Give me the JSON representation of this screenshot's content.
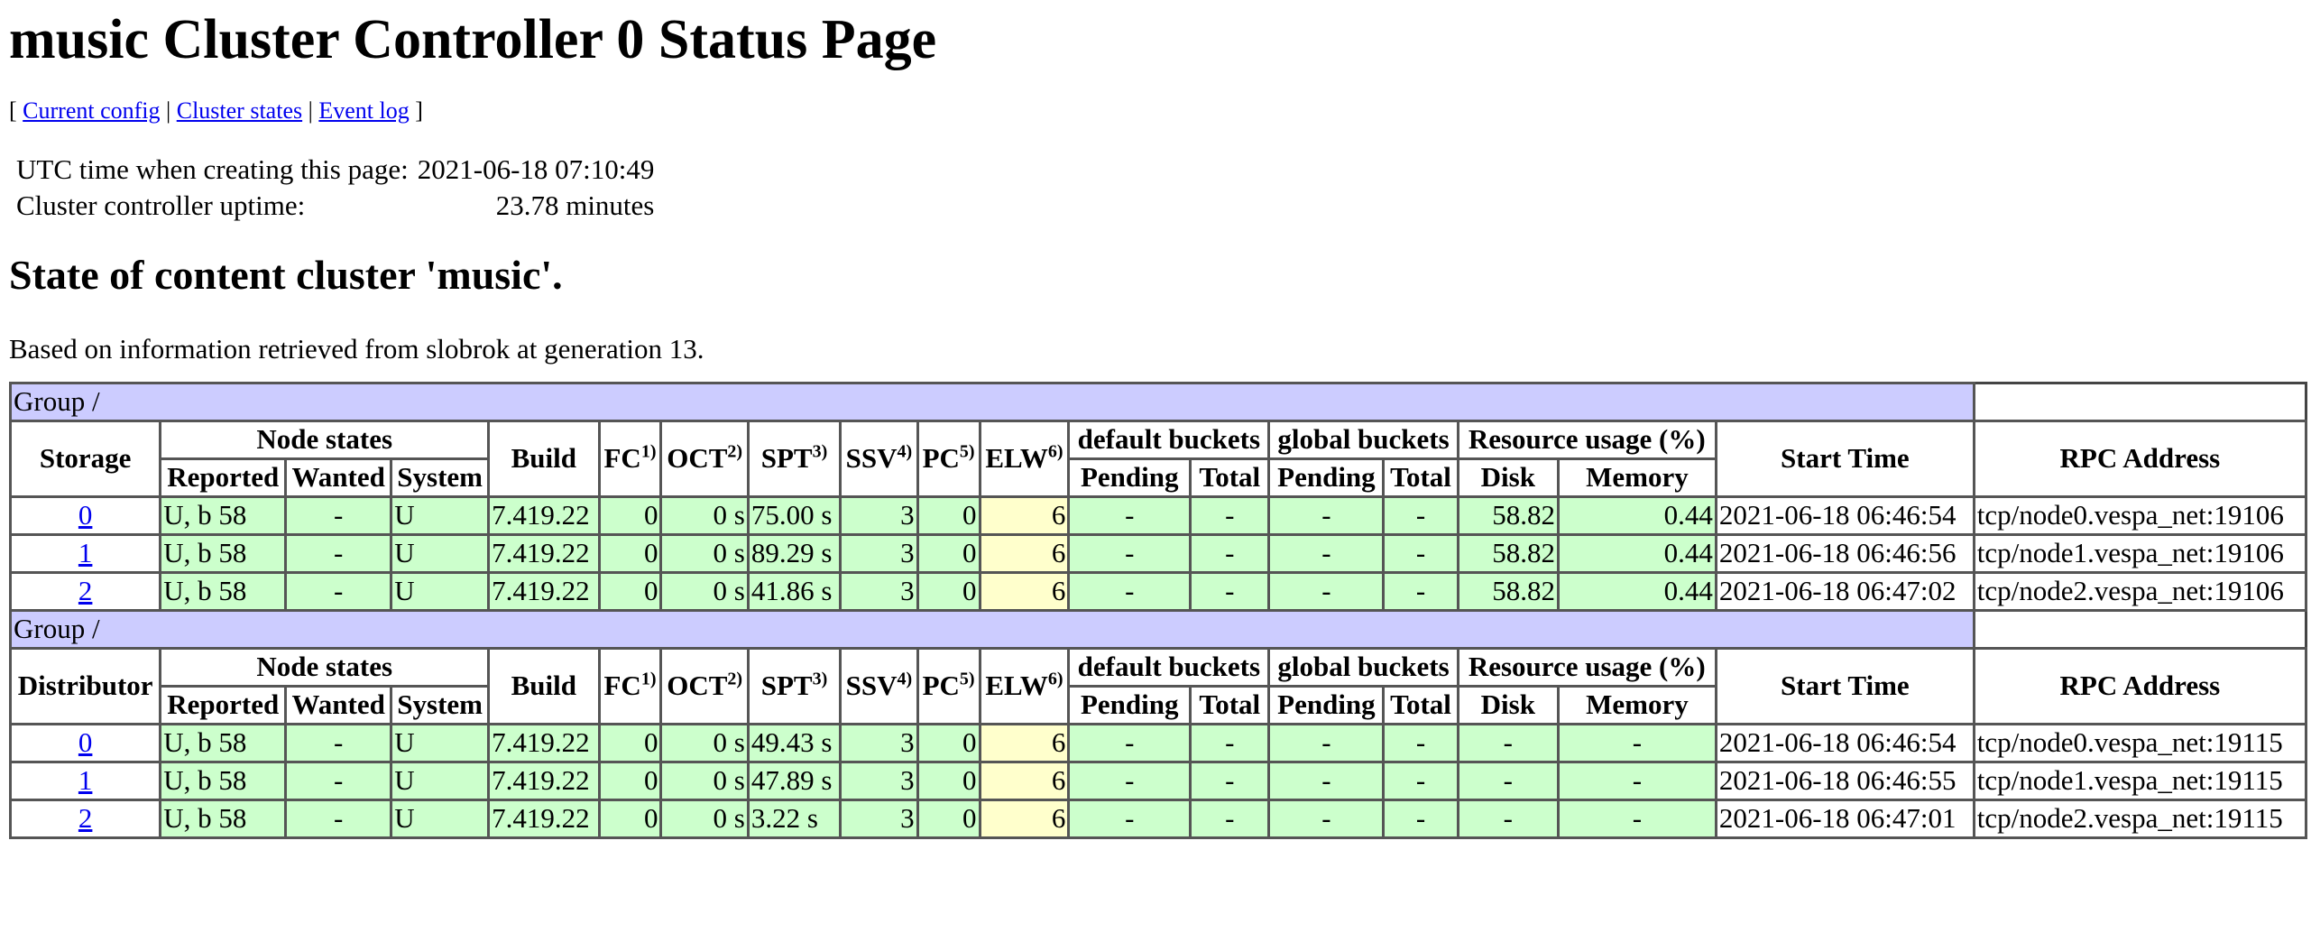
{
  "page": {
    "title": "music Cluster Controller 0 Status Page",
    "links": {
      "open": "[",
      "current_config": "Current config",
      "sep1": "|",
      "cluster_states": "Cluster states",
      "sep2": "|",
      "event_log": "Event log",
      "close": "]"
    },
    "info": {
      "utc_label": "UTC time when creating this page:",
      "utc_value": "2021-06-18 07:10:49",
      "uptime_label": "Cluster controller uptime:",
      "uptime_value": "23.78 minutes"
    },
    "heading": "State of content cluster 'music'.",
    "generation_text": "Based on information retrieved from slobrok at generation 13."
  },
  "headers": {
    "node_states": "Node states",
    "reported": "Reported",
    "wanted": "Wanted",
    "system": "System",
    "build": "Build",
    "fc": "FC",
    "fc_sup": "1)",
    "oct": "OCT",
    "oct_sup": "2)",
    "spt": "SPT",
    "spt_sup": "3)",
    "ssv": "SSV",
    "ssv_sup": "4)",
    "pc": "PC",
    "pc_sup": "5)",
    "elw": "ELW",
    "elw_sup": "6)",
    "default_buckets": "default buckets",
    "global_buckets": "global buckets",
    "pending": "Pending",
    "total": "Total",
    "resource_usage": "Resource usage (%)",
    "disk": "Disk",
    "memory": "Memory",
    "start_time": "Start Time",
    "rpc_address": "RPC Address"
  },
  "groups": [
    {
      "group_label": "Group /",
      "type_label": "Storage",
      "rows": [
        {
          "id": "0",
          "reported": "U, b 58",
          "wanted": "-",
          "system": "U",
          "build": "7.419.22",
          "fc": "0",
          "oct": "0 s",
          "spt": "75.00 s",
          "ssv": "3",
          "pc": "0",
          "elw": "6",
          "def_pending": "-",
          "def_total": "-",
          "glob_pending": "-",
          "glob_total": "-",
          "disk": "58.82",
          "memory": "0.44",
          "start": "2021-06-18 06:46:54",
          "rpc": "tcp/node0.vespa_net:19106"
        },
        {
          "id": "1",
          "reported": "U, b 58",
          "wanted": "-",
          "system": "U",
          "build": "7.419.22",
          "fc": "0",
          "oct": "0 s",
          "spt": "89.29 s",
          "ssv": "3",
          "pc": "0",
          "elw": "6",
          "def_pending": "-",
          "def_total": "-",
          "glob_pending": "-",
          "glob_total": "-",
          "disk": "58.82",
          "memory": "0.44",
          "start": "2021-06-18 06:46:56",
          "rpc": "tcp/node1.vespa_net:19106"
        },
        {
          "id": "2",
          "reported": "U, b 58",
          "wanted": "-",
          "system": "U",
          "build": "7.419.22",
          "fc": "0",
          "oct": "0 s",
          "spt": "41.86 s",
          "ssv": "3",
          "pc": "0",
          "elw": "6",
          "def_pending": "-",
          "def_total": "-",
          "glob_pending": "-",
          "glob_total": "-",
          "disk": "58.82",
          "memory": "0.44",
          "start": "2021-06-18 06:47:02",
          "rpc": "tcp/node2.vespa_net:19106"
        }
      ]
    },
    {
      "group_label": "Group /",
      "type_label": "Distributor",
      "rows": [
        {
          "id": "0",
          "reported": "U, b 58",
          "wanted": "-",
          "system": "U",
          "build": "7.419.22",
          "fc": "0",
          "oct": "0 s",
          "spt": "49.43 s",
          "ssv": "3",
          "pc": "0",
          "elw": "6",
          "def_pending": "-",
          "def_total": "-",
          "glob_pending": "-",
          "glob_total": "-",
          "disk": "-",
          "memory": "-",
          "start": "2021-06-18 06:46:54",
          "rpc": "tcp/node0.vespa_net:19115"
        },
        {
          "id": "1",
          "reported": "U, b 58",
          "wanted": "-",
          "system": "U",
          "build": "7.419.22",
          "fc": "0",
          "oct": "0 s",
          "spt": "47.89 s",
          "ssv": "3",
          "pc": "0",
          "elw": "6",
          "def_pending": "-",
          "def_total": "-",
          "glob_pending": "-",
          "glob_total": "-",
          "disk": "-",
          "memory": "-",
          "start": "2021-06-18 06:46:55",
          "rpc": "tcp/node1.vespa_net:19115"
        },
        {
          "id": "2",
          "reported": "U, b 58",
          "wanted": "-",
          "system": "U",
          "build": "7.419.22",
          "fc": "0",
          "oct": "0 s",
          "spt": "3.22 s",
          "ssv": "3",
          "pc": "0",
          "elw": "6",
          "def_pending": "-",
          "def_total": "-",
          "glob_pending": "-",
          "glob_total": "-",
          "disk": "-",
          "memory": "-",
          "start": "2021-06-18 06:47:01",
          "rpc": "tcp/node2.vespa_net:19115"
        }
      ]
    }
  ],
  "colors": {
    "group_header_bg": "#ccccff",
    "ok_cell_bg": "#ccffcc",
    "warn_cell_bg": "#ffffcc",
    "link": "#0000ee"
  }
}
